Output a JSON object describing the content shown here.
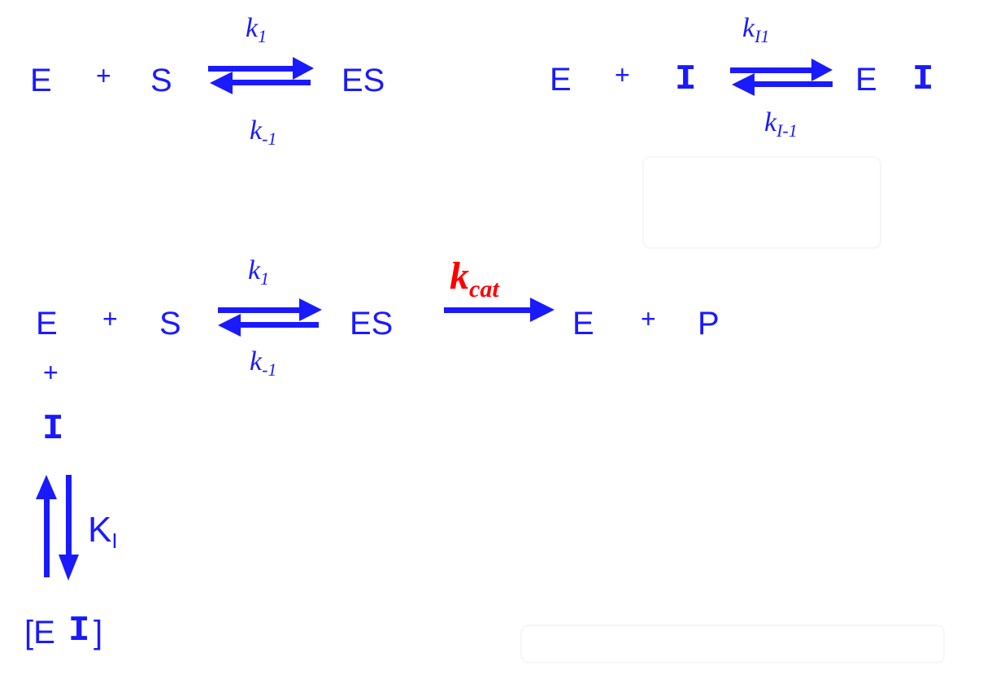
{
  "colors": {
    "blue": "#1a1aff",
    "red": "#ff0000",
    "ghost": "#f4f4f6"
  },
  "reaction1": {
    "E": "E",
    "plus": "+",
    "S": "S",
    "product": "ES",
    "k_forward": "k",
    "k_forward_sub": "1",
    "k_reverse": "k",
    "k_reverse_sub": "-1"
  },
  "reaction2": {
    "E": "E",
    "plus": "+",
    "I": "I",
    "product_E": "E",
    "product_I": "I",
    "k_forward": "k",
    "k_forward_sub": "I1",
    "k_reverse": "k",
    "k_reverse_sub": "I-1"
  },
  "scheme": {
    "E": "E",
    "plus1": "+",
    "S": "S",
    "ES": "ES",
    "k_forward": "k",
    "k_forward_sub": "1",
    "k_reverse": "k",
    "k_reverse_sub": "-1",
    "kcat": "k",
    "kcat_sub": "cat",
    "E2": "E",
    "plus2": "+",
    "P": "P",
    "vertical_plus": "+",
    "I": "I",
    "KI": "K",
    "KI_sub": "I",
    "EI_open": "[E",
    "EI_I": "I",
    "EI_close": "]"
  }
}
